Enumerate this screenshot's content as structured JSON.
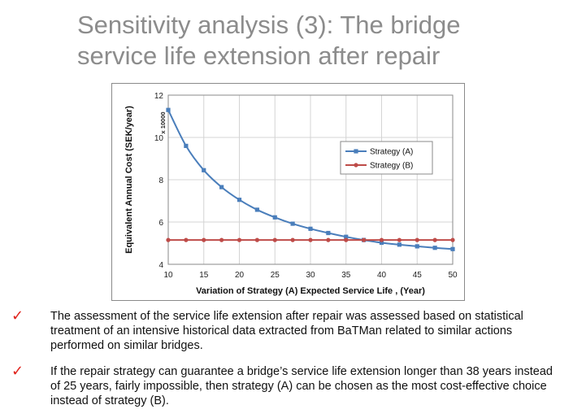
{
  "slide": {
    "title_line1": "Sensitivity analysis (3): The bridge",
    "title_line2": "service life extension after repair"
  },
  "bullets": [
    {
      "icon": "check-icon",
      "text": "The assessment of the service life extension after repair was assessed based on statistical treatment of an intensive historical data extracted from BaTMan related to similar actions performed on similar bridges."
    },
    {
      "icon": "check-icon",
      "text": "If the repair strategy can guarantee a bridge’s service life extension longer than 38 years instead of 25 years, fairly impossible, then strategy (A) can be chosen as the most cost-effective choice instead of strategy (B)."
    }
  ],
  "colors": {
    "title": "#8c8c8c",
    "check": "#e0221b",
    "series_a": "#4a7ebb",
    "series_b": "#be4b48"
  },
  "chart_data": {
    "type": "line",
    "title": "",
    "xlabel": "Variation of Strategy (A) Expected Service Life , (Year)",
    "ylabel": "Equivalent Annual Cost (SEK/year)",
    "y_multiplier_label": "x 10000",
    "xlim": [
      10,
      50
    ],
    "ylim": [
      4,
      12
    ],
    "x_ticks": [
      10,
      15,
      20,
      25,
      30,
      35,
      40,
      45,
      50
    ],
    "y_ticks": [
      4,
      6,
      8,
      10,
      12
    ],
    "grid": true,
    "legend_position": "right",
    "series": [
      {
        "name": "Strategy (A)",
        "marker": "square",
        "color": "#4a7ebb",
        "x": [
          10,
          12.5,
          15,
          17.5,
          20,
          22.5,
          25,
          27.5,
          30,
          32.5,
          35,
          37.5,
          40,
          42.5,
          45,
          47.5,
          50
        ],
        "y": [
          11.3,
          9.6,
          8.45,
          7.65,
          7.05,
          6.58,
          6.22,
          5.92,
          5.68,
          5.48,
          5.3,
          5.15,
          5.02,
          4.93,
          4.85,
          4.78,
          4.72
        ]
      },
      {
        "name": "Strategy (B)",
        "marker": "circle",
        "color": "#be4b48",
        "x": [
          10,
          12.5,
          15,
          17.5,
          20,
          22.5,
          25,
          27.5,
          30,
          32.5,
          35,
          37.5,
          40,
          42.5,
          45,
          47.5,
          50
        ],
        "y": [
          5.15,
          5.15,
          5.15,
          5.15,
          5.15,
          5.15,
          5.15,
          5.15,
          5.15,
          5.15,
          5.15,
          5.15,
          5.15,
          5.15,
          5.15,
          5.15,
          5.15
        ]
      }
    ]
  }
}
